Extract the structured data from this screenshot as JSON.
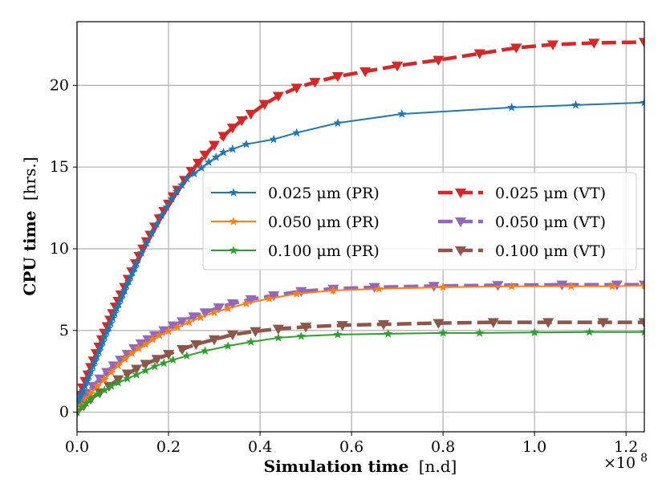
{
  "chart_data": {
    "type": "line",
    "title": "",
    "xlabel": {
      "bold": "Simulation time",
      "plain": "[n.d]"
    },
    "ylabel": {
      "bold": "CPU time",
      "plain": "[hrs.]"
    },
    "x_multiplier": "×10",
    "x_multiplier_exp": "8",
    "xlim": [
      0.0,
      1.24
    ],
    "ylim": [
      -1.2,
      23.9
    ],
    "xticks": [
      0.0,
      0.2,
      0.4,
      0.6,
      0.8,
      1.0,
      1.2
    ],
    "xtick_labels": [
      "0.0",
      "0.2",
      "0.4",
      "0.6",
      "0.8",
      "1.0",
      "1.2"
    ],
    "yticks": [
      0,
      5,
      10,
      15,
      20
    ],
    "ytick_labels": [
      "0",
      "5",
      "10",
      "15",
      "20"
    ],
    "grid": true,
    "legend_position": "center-right",
    "series": [
      {
        "name": "0.025 μm (PR)",
        "color": "#1f77b4",
        "dashed": false,
        "marker": "star",
        "width": 2,
        "x": [
          0.0,
          0.0043,
          0.0087,
          0.013,
          0.0174,
          0.0217,
          0.026,
          0.0304,
          0.0347,
          0.039,
          0.0434,
          0.0477,
          0.052,
          0.0564,
          0.0607,
          0.065,
          0.0694,
          0.0737,
          0.078,
          0.0824,
          0.0867,
          0.091,
          0.0954,
          0.0997,
          0.104,
          0.108,
          0.113,
          0.117,
          0.121,
          0.126,
          0.13,
          0.141,
          0.152,
          0.163,
          0.174,
          0.185,
          0.196,
          0.207,
          0.218,
          0.229,
          0.24,
          0.256,
          0.272,
          0.288,
          0.304,
          0.32,
          0.34,
          0.37,
          0.43,
          0.48,
          0.57,
          0.71,
          0.95,
          1.09,
          1.24
        ],
        "y": [
          0.6,
          0.8,
          1.05,
          1.3,
          1.6,
          1.9,
          2.2,
          2.5,
          2.8,
          3.1,
          3.4,
          3.7,
          4.0,
          4.3,
          4.6,
          4.9,
          5.15,
          5.45,
          5.75,
          6.05,
          6.35,
          6.6,
          6.9,
          7.2,
          7.45,
          7.75,
          8.0,
          8.3,
          8.55,
          8.8,
          9.1,
          9.75,
          10.35,
          10.95,
          11.5,
          12.05,
          12.55,
          13.05,
          13.5,
          13.9,
          14.3,
          14.6,
          14.95,
          15.3,
          15.6,
          15.9,
          16.1,
          16.4,
          16.7,
          17.1,
          17.7,
          18.25,
          18.65,
          18.8,
          18.95
        ],
        "markers_every": 1
      },
      {
        "name": "0.050 μm (PR)",
        "color": "#ff7f0e",
        "dashed": false,
        "marker": "star",
        "width": 2,
        "x": [
          0.0,
          0.01,
          0.02,
          0.03,
          0.045,
          0.06,
          0.075,
          0.09,
          0.105,
          0.12,
          0.135,
          0.15,
          0.165,
          0.18,
          0.2,
          0.22,
          0.245,
          0.27,
          0.3,
          0.33,
          0.37,
          0.42,
          0.48,
          0.56,
          0.66,
          0.8,
          0.95,
          1.08,
          1.17,
          1.24
        ],
        "y": [
          0.0,
          0.4,
          0.8,
          1.15,
          1.6,
          2.0,
          2.45,
          2.85,
          3.25,
          3.6,
          3.9,
          4.15,
          4.45,
          4.7,
          4.95,
          5.2,
          5.5,
          5.8,
          6.1,
          6.35,
          6.65,
          6.95,
          7.25,
          7.45,
          7.55,
          7.65,
          7.7,
          7.7,
          7.7,
          7.75
        ],
        "markers_every": 1
      },
      {
        "name": "0.100 μm (PR)",
        "color": "#2ca02c",
        "dashed": false,
        "marker": "star",
        "width": 2,
        "x": [
          0.0,
          0.01,
          0.02,
          0.03,
          0.045,
          0.06,
          0.075,
          0.09,
          0.11,
          0.13,
          0.15,
          0.17,
          0.19,
          0.21,
          0.24,
          0.28,
          0.33,
          0.38,
          0.44,
          0.49,
          0.57,
          0.68,
          0.8,
          0.88,
          1.0,
          1.12,
          1.24
        ],
        "y": [
          0.0,
          0.3,
          0.55,
          0.8,
          1.1,
          1.35,
          1.6,
          1.8,
          2.05,
          2.3,
          2.55,
          2.8,
          3.0,
          3.2,
          3.45,
          3.75,
          4.05,
          4.3,
          4.55,
          4.65,
          4.75,
          4.8,
          4.85,
          4.85,
          4.88,
          4.9,
          4.9
        ],
        "markers_every": 1
      },
      {
        "name": "0.025 μm (VT)",
        "color": "#d62728",
        "dashed": true,
        "marker": "triangle-down",
        "width": 4.5,
        "x": [
          0.0,
          0.006,
          0.012,
          0.018,
          0.024,
          0.03,
          0.036,
          0.042,
          0.048,
          0.054,
          0.06,
          0.066,
          0.072,
          0.078,
          0.084,
          0.09,
          0.096,
          0.104,
          0.112,
          0.12,
          0.128,
          0.136,
          0.144,
          0.152,
          0.16,
          0.17,
          0.18,
          0.19,
          0.2,
          0.21,
          0.22,
          0.235,
          0.25,
          0.265,
          0.28,
          0.3,
          0.32,
          0.34,
          0.36,
          0.38,
          0.41,
          0.44,
          0.48,
          0.52,
          0.57,
          0.63,
          0.7,
          0.79,
          0.88,
          0.96,
          1.04,
          1.13,
          1.24
        ],
        "y": [
          0.7,
          1.05,
          1.5,
          1.9,
          2.3,
          2.75,
          3.15,
          3.6,
          4.0,
          4.45,
          4.85,
          5.25,
          5.65,
          6.05,
          6.45,
          6.8,
          7.2,
          7.65,
          8.15,
          8.6,
          9.1,
          9.55,
          10.0,
          10.45,
          10.85,
          11.35,
          11.85,
          12.3,
          12.75,
          13.2,
          13.6,
          14.2,
          14.75,
          15.25,
          15.75,
          16.35,
          16.9,
          17.4,
          17.85,
          18.25,
          18.85,
          19.35,
          19.85,
          20.2,
          20.55,
          20.85,
          21.2,
          21.55,
          21.95,
          22.3,
          22.5,
          22.6,
          22.65
        ],
        "markers_every": 1
      },
      {
        "name": "0.050 μm (VT)",
        "color": "#9467bd",
        "dashed": true,
        "marker": "triangle-down",
        "width": 4.5,
        "x": [
          0.0,
          0.01,
          0.02,
          0.035,
          0.05,
          0.065,
          0.08,
          0.095,
          0.11,
          0.125,
          0.14,
          0.155,
          0.17,
          0.19,
          0.21,
          0.23,
          0.255,
          0.28,
          0.31,
          0.34,
          0.38,
          0.43,
          0.49,
          0.56,
          0.65,
          0.78,
          0.92,
          1.06,
          1.18,
          1.24
        ],
        "y": [
          0.5,
          0.8,
          1.15,
          1.6,
          2.05,
          2.45,
          2.85,
          3.2,
          3.55,
          3.9,
          4.2,
          4.45,
          4.7,
          5.0,
          5.3,
          5.55,
          5.85,
          6.1,
          6.4,
          6.65,
          6.9,
          7.15,
          7.4,
          7.55,
          7.65,
          7.72,
          7.77,
          7.8,
          7.8,
          7.8
        ],
        "markers_every": 1
      },
      {
        "name": "0.100 μm (VT)",
        "color": "#8c564b",
        "dashed": true,
        "marker": "triangle-down",
        "width": 4.5,
        "x": [
          0.0,
          0.015,
          0.03,
          0.05,
          0.07,
          0.09,
          0.11,
          0.13,
          0.15,
          0.175,
          0.2,
          0.23,
          0.26,
          0.3,
          0.34,
          0.39,
          0.44,
          0.5,
          0.58,
          0.67,
          0.79,
          0.91,
          1.03,
          1.15,
          1.24
        ],
        "y": [
          0.0,
          0.4,
          0.8,
          1.2,
          1.6,
          2.0,
          2.35,
          2.65,
          2.95,
          3.25,
          3.55,
          3.85,
          4.15,
          4.45,
          4.75,
          4.95,
          5.1,
          5.22,
          5.32,
          5.38,
          5.45,
          5.5,
          5.5,
          5.5,
          5.5
        ],
        "markers_every": 1
      }
    ]
  }
}
